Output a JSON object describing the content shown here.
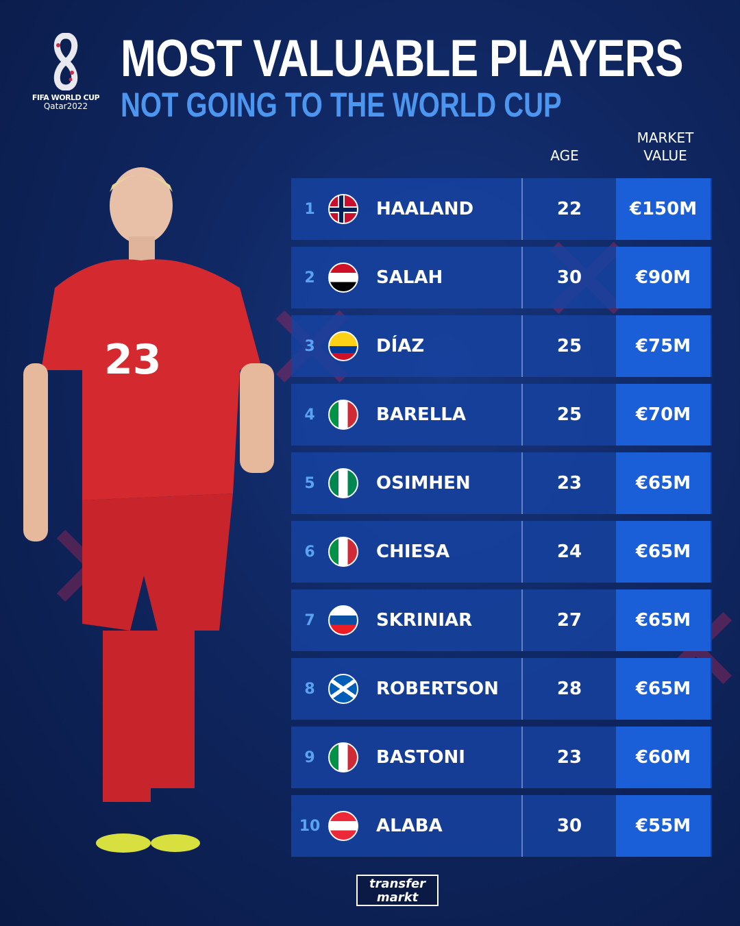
{
  "logo": {
    "line1": "FIFA WORLD CUP",
    "line2": "Qatar2022"
  },
  "title": "MOST VALUABLE PLAYERS",
  "subtitle": "NOT GOING TO THE WORLD CUP",
  "columns": {
    "age": "AGE",
    "market_value_1": "MARKET",
    "market_value_2": "VALUE"
  },
  "colors": {
    "row": "#1642a0",
    "value_cell": "#1b5fd8",
    "rank": "#5aa2f2",
    "subtitle": "#4d96f0"
  },
  "players": [
    {
      "rank": "1",
      "flag": "norway-flag-icon",
      "name": "HAALAND",
      "age": "22",
      "value": "€150M"
    },
    {
      "rank": "2",
      "flag": "egypt-flag-icon",
      "name": "SALAH",
      "age": "30",
      "value": "€90M"
    },
    {
      "rank": "3",
      "flag": "colombia-flag-icon",
      "name": "DÍAZ",
      "age": "25",
      "value": "€75M"
    },
    {
      "rank": "4",
      "flag": "italy-flag-icon",
      "name": "BARELLA",
      "age": "25",
      "value": "€70M"
    },
    {
      "rank": "5",
      "flag": "nigeria-flag-icon",
      "name": "OSIMHEN",
      "age": "23",
      "value": "€65M"
    },
    {
      "rank": "6",
      "flag": "italy-flag-icon",
      "name": "CHIESA",
      "age": "24",
      "value": "€65M"
    },
    {
      "rank": "7",
      "flag": "slovakia-flag-icon",
      "name": "SKRINIAR",
      "age": "27",
      "value": "€65M"
    },
    {
      "rank": "8",
      "flag": "scotland-flag-icon",
      "name": "ROBERTSON",
      "age": "28",
      "value": "€65M"
    },
    {
      "rank": "9",
      "flag": "italy-flag-icon",
      "name": "BASTONI",
      "age": "23",
      "value": "€60M"
    },
    {
      "rank": "10",
      "flag": "austria-flag-icon",
      "name": "ALABA",
      "age": "30",
      "value": "€55M"
    }
  ],
  "player_image": {
    "shirt_number": "23"
  },
  "footer": {
    "brand_1": "transfer",
    "brand_2": "markt"
  }
}
